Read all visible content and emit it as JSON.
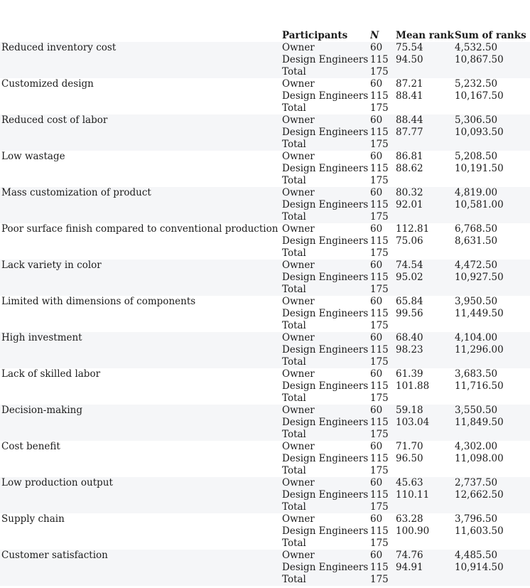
{
  "colors": {
    "stripe": "#f5f6f8",
    "background": "#ffffff",
    "text": "#1c1c1c"
  },
  "table": {
    "header": {
      "factor": "",
      "participants": "Participants",
      "n": "N",
      "mean_rank": "Mean rank",
      "sum_of_ranks": "Sum of ranks"
    },
    "groups": [
      {
        "factor": "Reduced inventory cost",
        "rows": [
          {
            "participant": "Owner",
            "n": "60",
            "mean_rank": "75.54",
            "sum_of_ranks": "4,532.50"
          },
          {
            "participant": "Design Engineers",
            "n": "115",
            "mean_rank": "94.50",
            "sum_of_ranks": "10,867.50"
          },
          {
            "participant": "Total",
            "n": "175",
            "mean_rank": "",
            "sum_of_ranks": ""
          }
        ]
      },
      {
        "factor": "Customized design",
        "rows": [
          {
            "participant": "Owner",
            "n": "60",
            "mean_rank": "87.21",
            "sum_of_ranks": "5,232.50"
          },
          {
            "participant": "Design Engineers",
            "n": "115",
            "mean_rank": "88.41",
            "sum_of_ranks": "10,167.50"
          },
          {
            "participant": "Total",
            "n": "175",
            "mean_rank": "",
            "sum_of_ranks": ""
          }
        ]
      },
      {
        "factor": "Reduced cost of labor",
        "rows": [
          {
            "participant": "Owner",
            "n": "60",
            "mean_rank": "88.44",
            "sum_of_ranks": "5,306.50"
          },
          {
            "participant": "Design Engineers",
            "n": "115",
            "mean_rank": "87.77",
            "sum_of_ranks": "10,093.50"
          },
          {
            "participant": "Total",
            "n": "175",
            "mean_rank": "",
            "sum_of_ranks": ""
          }
        ]
      },
      {
        "factor": "Low wastage",
        "rows": [
          {
            "participant": "Owner",
            "n": "60",
            "mean_rank": "86.81",
            "sum_of_ranks": "5,208.50"
          },
          {
            "participant": "Design Engineers",
            "n": "115",
            "mean_rank": "88.62",
            "sum_of_ranks": "10,191.50"
          },
          {
            "participant": "Total",
            "n": "175",
            "mean_rank": "",
            "sum_of_ranks": ""
          }
        ]
      },
      {
        "factor": "Mass customization of product",
        "rows": [
          {
            "participant": "Owner",
            "n": "60",
            "mean_rank": "80.32",
            "sum_of_ranks": "4,819.00"
          },
          {
            "participant": "Design Engineers",
            "n": "115",
            "mean_rank": "92.01",
            "sum_of_ranks": "10,581.00"
          },
          {
            "participant": "Total",
            "n": "175",
            "mean_rank": "",
            "sum_of_ranks": ""
          }
        ]
      },
      {
        "factor": "Poor surface finish compared to conventional production",
        "rows": [
          {
            "participant": "Owner",
            "n": "60",
            "mean_rank": "112.81",
            "sum_of_ranks": "6,768.50"
          },
          {
            "participant": "Design Engineers",
            "n": "115",
            "mean_rank": "75.06",
            "sum_of_ranks": "8,631.50"
          },
          {
            "participant": "Total",
            "n": "175",
            "mean_rank": "",
            "sum_of_ranks": ""
          }
        ]
      },
      {
        "factor": "Lack variety in color",
        "rows": [
          {
            "participant": "Owner",
            "n": "60",
            "mean_rank": "74.54",
            "sum_of_ranks": "4,472.50"
          },
          {
            "participant": "Design Engineers",
            "n": "115",
            "mean_rank": "95.02",
            "sum_of_ranks": "10,927.50"
          },
          {
            "participant": "Total",
            "n": "175",
            "mean_rank": "",
            "sum_of_ranks": ""
          }
        ]
      },
      {
        "factor": "Limited with dimensions of components",
        "rows": [
          {
            "participant": "Owner",
            "n": "60",
            "mean_rank": "65.84",
            "sum_of_ranks": "3,950.50"
          },
          {
            "participant": "Design Engineers",
            "n": "115",
            "mean_rank": "99.56",
            "sum_of_ranks": "11,449.50"
          },
          {
            "participant": "Total",
            "n": "175",
            "mean_rank": "",
            "sum_of_ranks": ""
          }
        ]
      },
      {
        "factor": "High investment",
        "rows": [
          {
            "participant": "Owner",
            "n": "60",
            "mean_rank": "68.40",
            "sum_of_ranks": "4,104.00"
          },
          {
            "participant": "Design Engineers",
            "n": "115",
            "mean_rank": "98.23",
            "sum_of_ranks": "11,296.00"
          },
          {
            "participant": "Total",
            "n": "175",
            "mean_rank": "",
            "sum_of_ranks": ""
          }
        ]
      },
      {
        "factor": "Lack of skilled labor",
        "rows": [
          {
            "participant": "Owner",
            "n": "60",
            "mean_rank": "61.39",
            "sum_of_ranks": "3,683.50"
          },
          {
            "participant": "Design Engineers",
            "n": "115",
            "mean_rank": "101.88",
            "sum_of_ranks": "11,716.50"
          },
          {
            "participant": "Total",
            "n": "175",
            "mean_rank": "",
            "sum_of_ranks": ""
          }
        ]
      },
      {
        "factor": "Decision-making",
        "rows": [
          {
            "participant": "Owner",
            "n": "60",
            "mean_rank": "59.18",
            "sum_of_ranks": "3,550.50"
          },
          {
            "participant": "Design Engineers",
            "n": "115",
            "mean_rank": "103.04",
            "sum_of_ranks": "11,849.50"
          },
          {
            "participant": "Total",
            "n": "175",
            "mean_rank": "",
            "sum_of_ranks": ""
          }
        ]
      },
      {
        "factor": "Cost benefit",
        "rows": [
          {
            "participant": "Owner",
            "n": "60",
            "mean_rank": "71.70",
            "sum_of_ranks": "4,302.00"
          },
          {
            "participant": "Design Engineers",
            "n": "115",
            "mean_rank": "96.50",
            "sum_of_ranks": "11,098.00"
          },
          {
            "participant": "Total",
            "n": "175",
            "mean_rank": "",
            "sum_of_ranks": ""
          }
        ]
      },
      {
        "factor": "Low production output",
        "rows": [
          {
            "participant": "Owner",
            "n": "60",
            "mean_rank": "45.63",
            "sum_of_ranks": "2,737.50"
          },
          {
            "participant": "Design Engineers",
            "n": "115",
            "mean_rank": "110.11",
            "sum_of_ranks": "12,662.50"
          },
          {
            "participant": "Total",
            "n": "175",
            "mean_rank": "",
            "sum_of_ranks": ""
          }
        ]
      },
      {
        "factor": "Supply chain",
        "rows": [
          {
            "participant": "Owner",
            "n": "60",
            "mean_rank": "63.28",
            "sum_of_ranks": "3,796.50"
          },
          {
            "participant": "Design Engineers",
            "n": "115",
            "mean_rank": "100.90",
            "sum_of_ranks": "11,603.50"
          },
          {
            "participant": "Total",
            "n": "175",
            "mean_rank": "",
            "sum_of_ranks": ""
          }
        ]
      },
      {
        "factor": "Customer satisfaction",
        "rows": [
          {
            "participant": "Owner",
            "n": "60",
            "mean_rank": "74.76",
            "sum_of_ranks": "4,485.50"
          },
          {
            "participant": "Design Engineers",
            "n": "115",
            "mean_rank": "94.91",
            "sum_of_ranks": "10,914.50"
          },
          {
            "participant": "Total",
            "n": "175",
            "mean_rank": "",
            "sum_of_ranks": ""
          }
        ]
      }
    ]
  }
}
